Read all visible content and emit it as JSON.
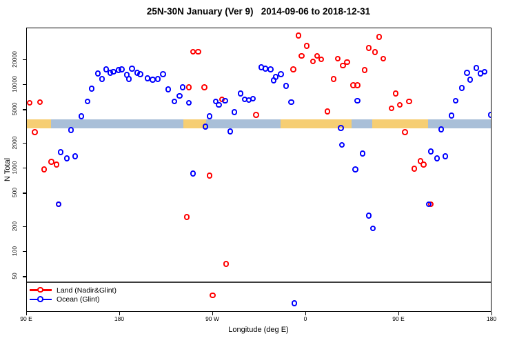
{
  "chart_data": {
    "type": "scatter",
    "title": "25N-30N January (Ver 9)   2014-09-06 to 2018-12-31",
    "xlabel": "Longitude (deg E)",
    "ylabel": "N Total",
    "background": "#ffffff",
    "grid": false,
    "legend_position": "bottom-left-inside",
    "x_axis": {
      "min": 90,
      "max": 540,
      "ticks": [
        {
          "value": 90,
          "label": "90 E"
        },
        {
          "value": 180,
          "label": "180"
        },
        {
          "value": 270,
          "label": "90 W"
        },
        {
          "value": 360,
          "label": "0"
        },
        {
          "value": 450,
          "label": "90 E"
        },
        {
          "value": 540,
          "label": "180"
        }
      ]
    },
    "y_axis": {
      "scale": "log",
      "min": 17,
      "max": 50000,
      "ticks": [
        50,
        100,
        200,
        500,
        1000,
        2000,
        5000,
        10000,
        20000
      ]
    },
    "map_band": {
      "description": "land/ocean strip for 25N-30N latitude belt",
      "y_top": 3870,
      "y_bottom": 3010,
      "land_color": "#f6ce73",
      "ocean_color": "#a9bfd8",
      "segments": [
        {
          "from": 90,
          "to": 113,
          "surface": "land"
        },
        {
          "from": 113,
          "to": 241,
          "surface": "ocean"
        },
        {
          "from": 241,
          "to": 263,
          "surface": "land"
        },
        {
          "from": 263,
          "to": 335,
          "surface": "ocean"
        },
        {
          "from": 335,
          "to": 404,
          "surface": "land"
        },
        {
          "from": 404,
          "to": 424,
          "surface": "ocean"
        },
        {
          "from": 424,
          "to": 478,
          "surface": "land"
        },
        {
          "from": 478,
          "to": 540,
          "surface": "ocean"
        }
      ]
    },
    "series": [
      {
        "name": "Land (Nadir&Glint)",
        "color": "#ff0000",
        "points": [
          [
            93,
            6050
          ],
          [
            103,
            6160
          ],
          [
            98,
            2680
          ],
          [
            107,
            960
          ],
          [
            114,
            1190
          ],
          [
            119,
            1100
          ],
          [
            121,
            370
          ],
          [
            251,
            24800
          ],
          [
            256,
            24800
          ],
          [
            247,
            9260
          ],
          [
            262,
            9260
          ],
          [
            279,
            6650
          ],
          [
            245,
            260
          ],
          [
            267,
            810
          ],
          [
            270,
            30
          ],
          [
            283,
            71
          ],
          [
            312,
            4350
          ],
          [
            353,
            38700
          ],
          [
            361,
            29000
          ],
          [
            356,
            22100
          ],
          [
            367,
            18900
          ],
          [
            371,
            22100
          ],
          [
            375,
            20100
          ],
          [
            348,
            15300
          ],
          [
            381,
            4790
          ],
          [
            387,
            11700
          ],
          [
            391,
            20500
          ],
          [
            396,
            16900
          ],
          [
            400,
            18600
          ],
          [
            406,
            9820
          ],
          [
            410,
            9820
          ],
          [
            417,
            15000
          ],
          [
            421,
            27400
          ],
          [
            431,
            37300
          ],
          [
            427,
            24400
          ],
          [
            435,
            20500
          ],
          [
            447,
            7780
          ],
          [
            443,
            5180
          ],
          [
            451,
            5700
          ],
          [
            460,
            6280
          ],
          [
            456,
            2680
          ],
          [
            465,
            980
          ],
          [
            471,
            1210
          ],
          [
            474,
            1100
          ],
          [
            481,
            370
          ]
        ]
      },
      {
        "name": "Ocean (Glint)",
        "color": "#0000ff",
        "points": [
          [
            133,
            2840
          ],
          [
            143,
            4190
          ],
          [
            149,
            6280
          ],
          [
            153,
            8900
          ],
          [
            159,
            13600
          ],
          [
            163,
            11700
          ],
          [
            167,
            15300
          ],
          [
            171,
            13900
          ],
          [
            174,
            14200
          ],
          [
            179,
            15000
          ],
          [
            182,
            15300
          ],
          [
            187,
            13100
          ],
          [
            189,
            11700
          ],
          [
            192,
            15600
          ],
          [
            197,
            13900
          ],
          [
            200,
            13400
          ],
          [
            207,
            11900
          ],
          [
            212,
            11400
          ],
          [
            217,
            11700
          ],
          [
            222,
            13400
          ],
          [
            227,
            8730
          ],
          [
            233,
            6280
          ],
          [
            238,
            7340
          ],
          [
            241,
            9260
          ],
          [
            247,
            6040
          ],
          [
            263,
            3130
          ],
          [
            267,
            4190
          ],
          [
            273,
            6280
          ],
          [
            276,
            5700
          ],
          [
            282,
            6400
          ],
          [
            287,
            2740
          ],
          [
            291,
            4700
          ],
          [
            297,
            7780
          ],
          [
            301,
            6650
          ],
          [
            305,
            6530
          ],
          [
            309,
            6780
          ],
          [
            317,
            16200
          ],
          [
            321,
            15600
          ],
          [
            326,
            15300
          ],
          [
            329,
            11200
          ],
          [
            331,
            12400
          ],
          [
            336,
            13400
          ],
          [
            341,
            9630
          ],
          [
            346,
            6150
          ],
          [
            394,
            3010
          ],
          [
            395,
            1890
          ],
          [
            408,
            960
          ],
          [
            410,
            6400
          ],
          [
            415,
            1500
          ],
          [
            123,
            1560
          ],
          [
            129,
            1310
          ],
          [
            137,
            1390
          ],
          [
            121,
            370
          ],
          [
            251,
            860
          ],
          [
            349,
            24
          ],
          [
            421,
            270
          ],
          [
            425,
            190
          ],
          [
            479,
            370
          ],
          [
            481,
            1590
          ],
          [
            487,
            1310
          ],
          [
            495,
            1390
          ],
          [
            491,
            2900
          ],
          [
            501,
            4270
          ],
          [
            505,
            6400
          ],
          [
            511,
            9080
          ],
          [
            516,
            13900
          ],
          [
            519,
            11400
          ],
          [
            525,
            15900
          ],
          [
            529,
            13600
          ],
          [
            533,
            14200
          ],
          [
            539,
            4350
          ]
        ]
      }
    ]
  }
}
